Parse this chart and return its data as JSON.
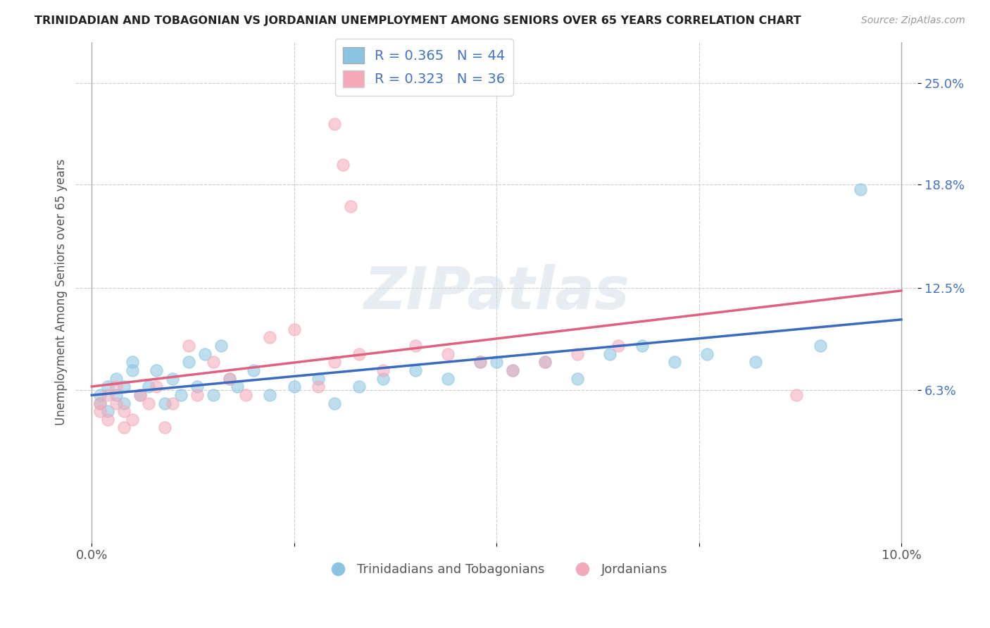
{
  "title": "TRINIDADIAN AND TOBAGONIAN VS JORDANIAN UNEMPLOYMENT AMONG SENIORS OVER 65 YEARS CORRELATION CHART",
  "source": "Source: ZipAtlas.com",
  "ylabel": "Unemployment Among Seniors over 65 years",
  "xlim": [
    -0.002,
    0.102
  ],
  "ylim": [
    -0.03,
    0.275
  ],
  "yticks": [
    0.063,
    0.125,
    0.188,
    0.25
  ],
  "ytick_labels": [
    "6.3%",
    "12.5%",
    "18.8%",
    "25.0%"
  ],
  "series1_label": "Trinidadians and Tobagonians",
  "series1_color": "#89c4e1",
  "series1_line_color": "#3b6abf",
  "series1_R": 0.365,
  "series1_N": 44,
  "series2_label": "Jordanians",
  "series2_color": "#f4a9b8",
  "series2_line_color": "#e06080",
  "series2_R": 0.323,
  "series2_N": 36,
  "background_color": "#ffffff",
  "grid_color": "#cccccc",
  "watermark": "ZIPatlas",
  "trinidadian_x": [
    0.001,
    0.001,
    0.002,
    0.002,
    0.003,
    0.003,
    0.004,
    0.004,
    0.005,
    0.005,
    0.006,
    0.007,
    0.008,
    0.009,
    0.01,
    0.011,
    0.012,
    0.013,
    0.014,
    0.015,
    0.016,
    0.017,
    0.018,
    0.02,
    0.022,
    0.025,
    0.028,
    0.03,
    0.033,
    0.036,
    0.04,
    0.044,
    0.048,
    0.05,
    0.052,
    0.056,
    0.06,
    0.064,
    0.068,
    0.072,
    0.076,
    0.082,
    0.09,
    0.095
  ],
  "trinidadian_y": [
    0.055,
    0.06,
    0.05,
    0.065,
    0.06,
    0.07,
    0.065,
    0.055,
    0.075,
    0.08,
    0.06,
    0.065,
    0.075,
    0.055,
    0.07,
    0.06,
    0.08,
    0.065,
    0.085,
    0.06,
    0.09,
    0.07,
    0.065,
    0.075,
    0.06,
    0.065,
    0.07,
    0.055,
    0.065,
    0.07,
    0.075,
    0.07,
    0.08,
    0.08,
    0.075,
    0.08,
    0.07,
    0.085,
    0.09,
    0.08,
    0.085,
    0.08,
    0.09,
    0.185
  ],
  "jordanian_x": [
    0.001,
    0.001,
    0.002,
    0.002,
    0.003,
    0.003,
    0.004,
    0.004,
    0.005,
    0.006,
    0.007,
    0.008,
    0.009,
    0.01,
    0.012,
    0.013,
    0.015,
    0.017,
    0.019,
    0.022,
    0.025,
    0.028,
    0.03,
    0.033,
    0.036,
    0.04,
    0.044,
    0.048,
    0.052,
    0.056,
    0.06,
    0.065,
    0.03,
    0.031,
    0.032,
    0.087
  ],
  "jordanian_y": [
    0.05,
    0.055,
    0.045,
    0.06,
    0.055,
    0.065,
    0.05,
    0.04,
    0.045,
    0.06,
    0.055,
    0.065,
    0.04,
    0.055,
    0.09,
    0.06,
    0.08,
    0.07,
    0.06,
    0.095,
    0.1,
    0.065,
    0.08,
    0.085,
    0.075,
    0.09,
    0.085,
    0.08,
    0.075,
    0.08,
    0.085,
    0.09,
    0.225,
    0.2,
    0.175,
    0.06
  ]
}
